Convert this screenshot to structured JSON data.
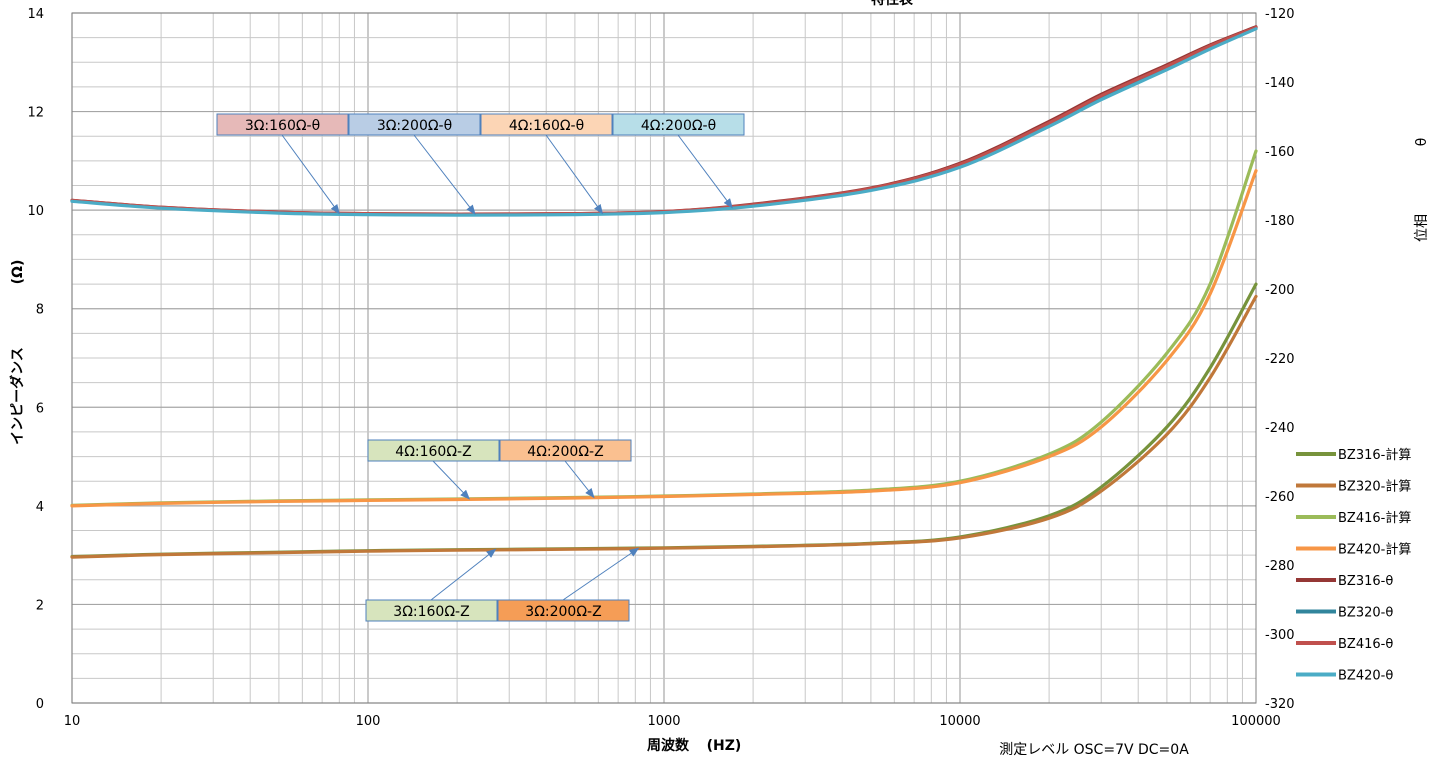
{
  "chart_data": {
    "type": "line",
    "title": "特性表",
    "xlabel": "周波数",
    "xunit": "(HZ)",
    "ylabel": "インピーダンス",
    "yunit": "(Ω)",
    "y2label": "位相",
    "y2unit": "θ",
    "xscale": "log",
    "xlim": [
      10,
      100000
    ],
    "ylim": [
      0,
      14
    ],
    "y2lim": [
      -320,
      -120
    ],
    "grid": true,
    "legend_position": "right",
    "x_ticks": [
      "10",
      "100",
      "1000",
      "10000",
      "100000"
    ],
    "y_ticks": [
      "0",
      "2",
      "4",
      "6",
      "8",
      "10",
      "12",
      "14"
    ],
    "y2_ticks": [
      "-120",
      "-140",
      "-160",
      "-180",
      "-200",
      "-220",
      "-240",
      "-260",
      "-280",
      "-300",
      "-320"
    ],
    "note": "測定レベル OSC=7V DC=0A",
    "x": [
      10,
      20,
      50,
      100,
      200,
      500,
      1000,
      2000,
      5000,
      10000,
      20000,
      30000,
      50000,
      70000,
      100000
    ],
    "series": [
      {
        "name": "BZ316-計算",
        "color": "#77933c",
        "axis": "left",
        "values": [
          2.97,
          3.02,
          3.06,
          3.09,
          3.11,
          3.13,
          3.15,
          3.18,
          3.24,
          3.37,
          3.8,
          4.38,
          5.6,
          6.8,
          8.5
        ]
      },
      {
        "name": "BZ320-計算",
        "color": "#c0783a",
        "axis": "left",
        "values": [
          2.96,
          3.01,
          3.05,
          3.08,
          3.1,
          3.12,
          3.14,
          3.17,
          3.23,
          3.35,
          3.75,
          4.3,
          5.45,
          6.6,
          8.25
        ]
      },
      {
        "name": "BZ416-計算",
        "color": "#9bbb59",
        "axis": "left",
        "values": [
          4.01,
          4.06,
          4.1,
          4.12,
          4.14,
          4.17,
          4.2,
          4.24,
          4.32,
          4.5,
          5.05,
          5.7,
          7.1,
          8.5,
          11.2
        ]
      },
      {
        "name": "BZ420-計算",
        "color": "#f79646",
        "axis": "left",
        "values": [
          4.0,
          4.05,
          4.09,
          4.11,
          4.13,
          4.16,
          4.19,
          4.23,
          4.3,
          4.47,
          5.0,
          5.6,
          6.95,
          8.3,
          10.8
        ]
      },
      {
        "name": "BZ316-θ",
        "color": "#953735",
        "axis": "left",
        "values": [
          10.2,
          10.06,
          9.96,
          9.93,
          9.92,
          9.93,
          9.97,
          10.12,
          10.45,
          10.95,
          11.8,
          12.35,
          12.95,
          13.35,
          13.72
        ]
      },
      {
        "name": "BZ320-θ",
        "color": "#31859c",
        "axis": "left",
        "values": [
          10.19,
          10.05,
          9.95,
          9.92,
          9.91,
          9.92,
          9.96,
          10.1,
          10.42,
          10.9,
          11.74,
          12.28,
          12.88,
          13.3,
          13.7
        ]
      },
      {
        "name": "BZ416-θ",
        "color": "#c0504d",
        "axis": "left",
        "values": [
          10.2,
          10.06,
          9.96,
          9.93,
          9.92,
          9.93,
          9.97,
          10.11,
          10.44,
          10.93,
          11.77,
          12.32,
          12.92,
          13.33,
          13.71
        ]
      },
      {
        "name": "BZ420-θ",
        "color": "#4bacc6",
        "axis": "left",
        "values": [
          10.18,
          10.04,
          9.94,
          9.91,
          9.9,
          9.91,
          9.95,
          10.08,
          10.4,
          10.87,
          11.7,
          12.24,
          12.85,
          13.27,
          13.68
        ]
      }
    ],
    "callouts": [
      {
        "text": "3Ω:160Ω-θ",
        "fill": "#e6b9b8",
        "stroke": "#4f81bd",
        "target": [
          80,
          9.93
        ]
      },
      {
        "text": "3Ω:200Ω-θ",
        "fill": "#b9cde5",
        "stroke": "#4f81bd",
        "target": [
          230,
          9.92
        ]
      },
      {
        "text": "4Ω:160Ω-θ",
        "fill": "#fcd5b5",
        "stroke": "#4f81bd",
        "target": [
          620,
          9.93
        ]
      },
      {
        "text": "4Ω:200Ω-θ",
        "fill": "#b7dee8",
        "stroke": "#4f81bd",
        "target": [
          1700,
          10.05
        ]
      },
      {
        "text": "4Ω:160Ω-Z",
        "fill": "#d7e4bd",
        "stroke": "#4f81bd",
        "target": [
          220,
          4.14
        ]
      },
      {
        "text": "4Ω:200Ω-Z",
        "fill": "#fac090",
        "stroke": "#4f81bd",
        "target": [
          580,
          4.17
        ]
      },
      {
        "text": "3Ω:160Ω-Z",
        "fill": "#d7e4bd",
        "stroke": "#4f81bd",
        "target": [
          270,
          3.12
        ]
      },
      {
        "text": "3Ω:200Ω-Z",
        "fill": "#f59d56",
        "stroke": "#4f81bd",
        "target": [
          820,
          3.14
        ]
      }
    ]
  }
}
